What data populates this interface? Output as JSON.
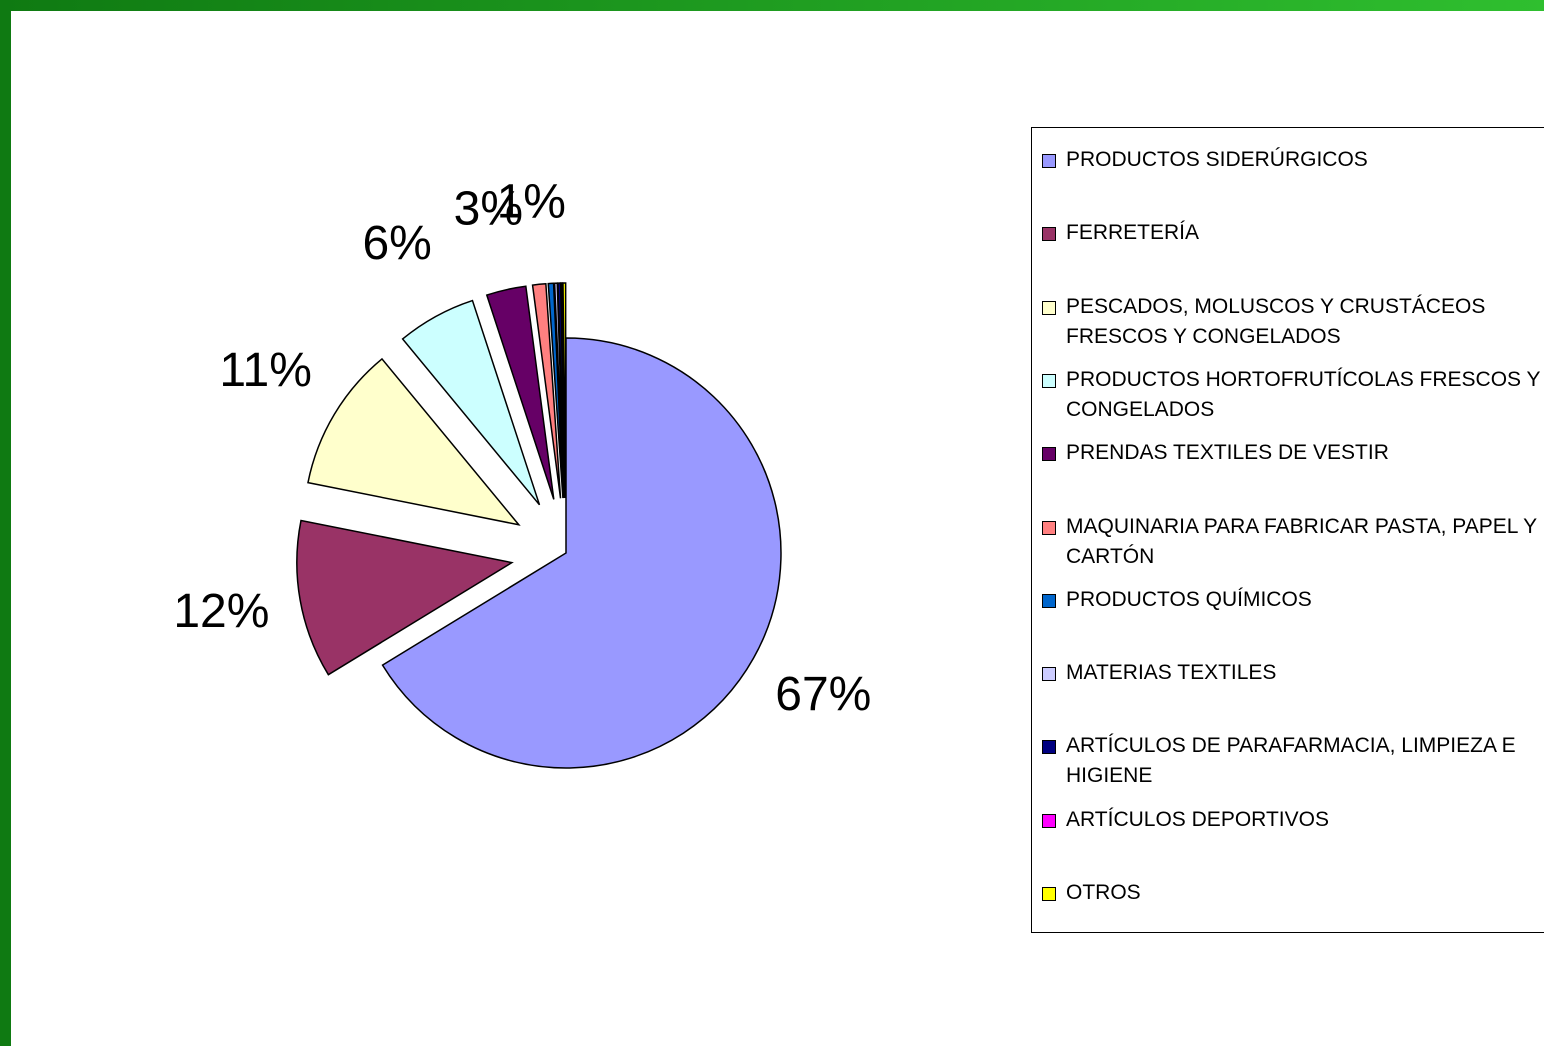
{
  "chart_data": {
    "type": "pie",
    "categories": [
      "PRODUCTOS SIDERÚRGICOS",
      "FERRETERÍA",
      "PESCADOS, MOLUSCOS Y CRUSTÁCEOS FRESCOS Y CONGELADOS",
      "PRODUCTOS HORTOFRUTÍCOLAS FRESCOS Y CONGELADOS",
      "PRENDAS TEXTILES DE VESTIR",
      "MAQUINARIA PARA FABRICAR PASTA, PAPEL Y CARTÓN",
      "PRODUCTOS QUÍMICOS",
      "MATERIAS TEXTILES",
      "ARTÍCULOS DE PARAFARMACIA, LIMPIEZA E HIGIENE",
      "ARTÍCULOS DEPORTIVOS",
      "OTROS"
    ],
    "values": [
      67,
      12,
      11,
      6,
      3,
      1,
      0.4,
      0.2,
      0.2,
      0.1,
      0.2
    ],
    "value_labels": [
      "67%",
      "12%",
      "11%",
      "6%",
      "3%",
      "1%",
      null,
      null,
      null,
      null,
      null
    ],
    "colors": [
      "#9999ff",
      "#993366",
      "#ffffcc",
      "#ccffff",
      "#660066",
      "#ff8080",
      "#0066cc",
      "#ccccff",
      "#000080",
      "#ff00ff",
      "#ffff00"
    ],
    "legend": "right"
  }
}
